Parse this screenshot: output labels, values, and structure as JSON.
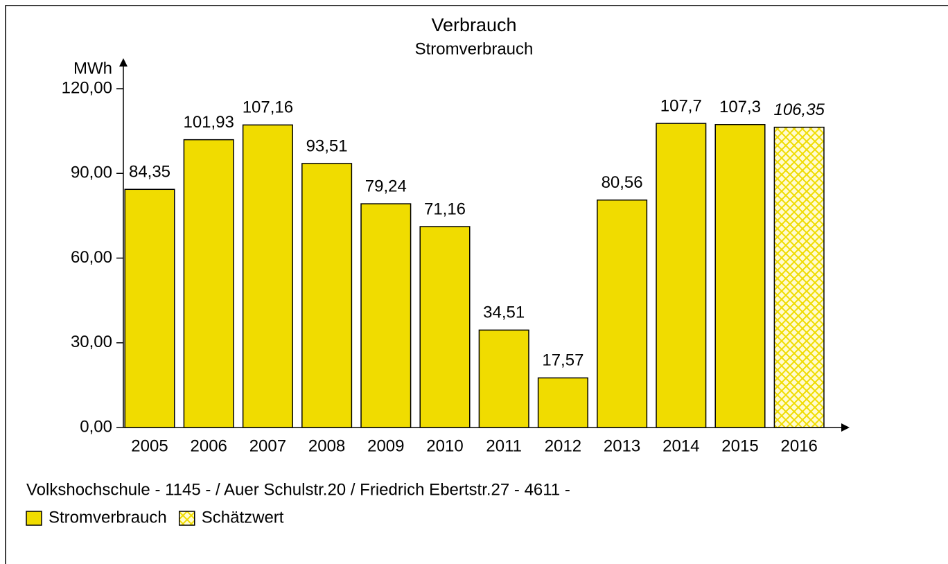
{
  "chart_data": {
    "type": "bar",
    "title": "Verbrauch",
    "subtitle": "Stromverbrauch",
    "y_label": "MWh",
    "categories": [
      "2005",
      "2006",
      "2007",
      "2008",
      "2009",
      "2010",
      "2011",
      "2012",
      "2013",
      "2014",
      "2015",
      "2016"
    ],
    "values": [
      84.35,
      101.93,
      107.16,
      93.51,
      79.24,
      71.16,
      34.51,
      17.57,
      80.56,
      107.7,
      107.3,
      106.35
    ],
    "value_labels": [
      "84,35",
      "101,93",
      "107,16",
      "93,51",
      "79,24",
      "71,16",
      "34,51",
      "17,57",
      "80,56",
      "107,7",
      "107,3",
      "106,35"
    ],
    "estimated": [
      false,
      false,
      false,
      false,
      false,
      false,
      false,
      false,
      false,
      false,
      false,
      true
    ],
    "color": "#f0dc00",
    "ylim": [
      0,
      120
    ],
    "yticks": [
      {
        "value": 0,
        "label": "0,00"
      },
      {
        "value": 30,
        "label": "30,00"
      },
      {
        "value": 60,
        "label": "60,00"
      },
      {
        "value": 90,
        "label": "90,00"
      },
      {
        "value": 120,
        "label": "120,00"
      }
    ],
    "footer": "Volkshochschule - 1145 - / Auer Schulstr.20 / Friedrich Ebertstr.27 - 4611 -",
    "legend": [
      {
        "name": "Stromverbrauch",
        "color": "#f0dc00"
      },
      {
        "name": "Schätzwert",
        "color": "#f0dc00",
        "pattern": "crosshatch"
      }
    ]
  }
}
